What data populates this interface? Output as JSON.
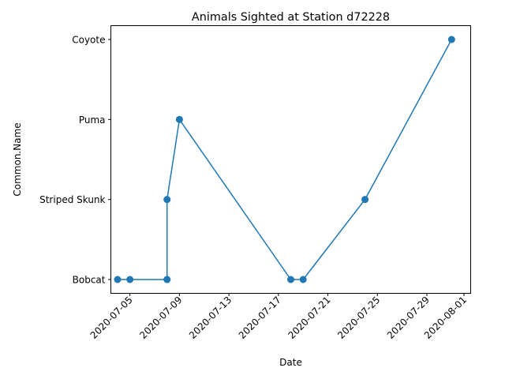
{
  "chart_data": {
    "type": "line",
    "title": "Animals Sighted at Station d72228",
    "xlabel": "Date",
    "ylabel": "Common.Name",
    "x_axis": "date",
    "xlim": [
      "2020-07-03T11:00",
      "2020-08-01T13:00"
    ],
    "x_ticks": [
      "2020-07-05",
      "2020-07-09",
      "2020-07-13",
      "2020-07-17",
      "2020-07-21",
      "2020-07-25",
      "2020-07-29",
      "2020-08-01"
    ],
    "y_categories": [
      "Bobcat",
      "Striped Skunk",
      "Puma",
      "Coyote"
    ],
    "grid": false,
    "line_color": "#1f77b4",
    "series": [
      {
        "points": [
          {
            "x": "2020-07-04",
            "y": "Bobcat"
          },
          {
            "x": "2020-07-05",
            "y": "Bobcat"
          },
          {
            "x": "2020-07-08",
            "y": "Bobcat"
          },
          {
            "x": "2020-07-08",
            "y": "Bobcat"
          },
          {
            "x": "2020-07-08",
            "y": "Striped Skunk"
          },
          {
            "x": "2020-07-09",
            "y": "Puma"
          },
          {
            "x": "2020-07-18",
            "y": "Bobcat"
          },
          {
            "x": "2020-07-19",
            "y": "Bobcat"
          },
          {
            "x": "2020-07-24",
            "y": "Striped Skunk"
          },
          {
            "x": "2020-07-31",
            "y": "Coyote"
          }
        ]
      }
    ]
  }
}
